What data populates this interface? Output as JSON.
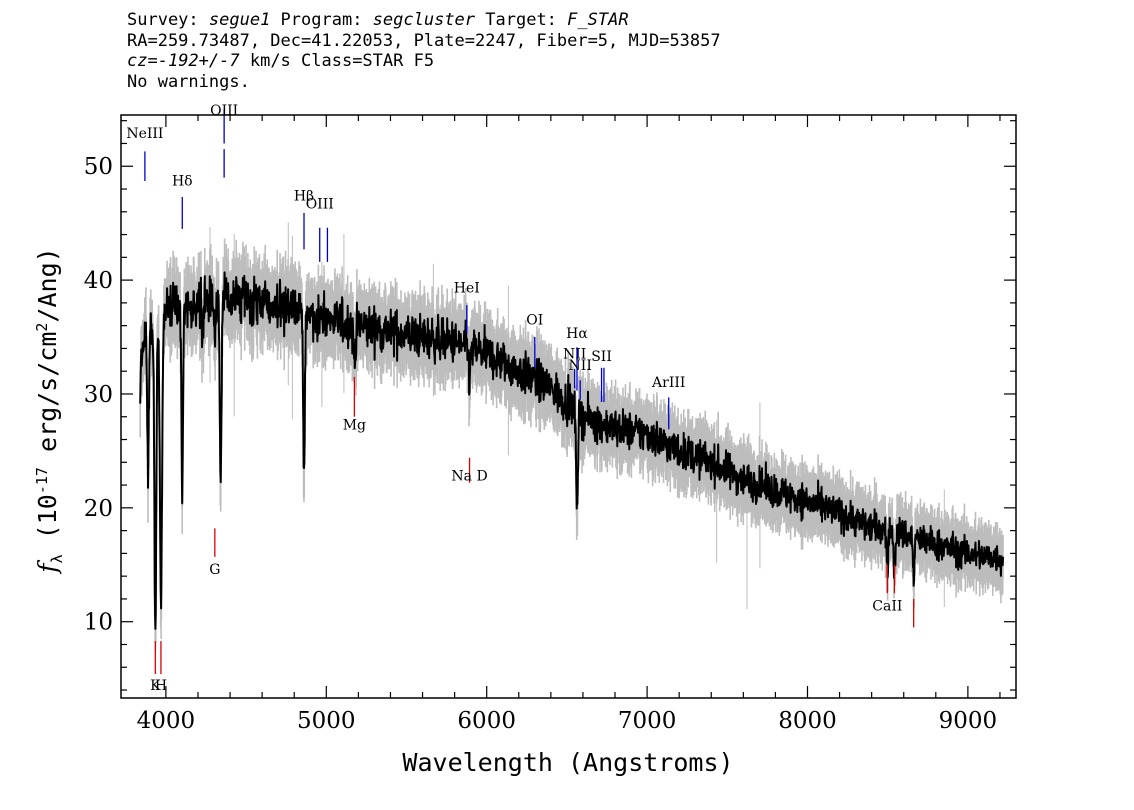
{
  "header": {
    "line1": {
      "survey_label": "Survey: ",
      "survey": "segue1",
      "program_label": " Program: ",
      "program": "segcluster",
      "target_label": " Target: ",
      "target": "F_STAR"
    },
    "line2": "RA=259.73487, Dec=41.22053, Plate=2247, Fiber=5, MJD=53857",
    "line3": {
      "cz_label": "cz=",
      "cz": "-192+/-7",
      "rest": " km/s Class=STAR F5"
    },
    "line4": "No warnings."
  },
  "colors": {
    "flux": "#000000",
    "error_band": "#bdbdbd",
    "emission": "#0000cc",
    "absorption": "#dd0000",
    "axes": "#000000"
  },
  "chart_data": {
    "type": "line",
    "xlabel": "Wavelength (Angstroms)",
    "ylabel": "f_λ (10^-17 erg/s/cm^2/Ang)",
    "ylabel_parts": {
      "f": "f",
      "sub": "λ",
      "pre": " (10",
      "exp1": "-17",
      "mid": " erg/s/cm",
      "exp2": "2",
      "post": "/Ang)"
    },
    "xlim": [
      3720,
      9300
    ],
    "ylim": [
      3.3,
      54.5
    ],
    "xticks": [
      4000,
      5000,
      6000,
      7000,
      8000,
      9000
    ],
    "yticks": [
      10,
      20,
      30,
      40,
      50
    ],
    "grid": false,
    "continuum": [
      [
        3840,
        33
      ],
      [
        3900,
        36
      ],
      [
        4000,
        37.5
      ],
      [
        4200,
        38
      ],
      [
        4400,
        38.3
      ],
      [
        4600,
        38
      ],
      [
        4800,
        37.5
      ],
      [
        5000,
        36.5
      ],
      [
        5200,
        36
      ],
      [
        5400,
        35.5
      ],
      [
        5600,
        35
      ],
      [
        5800,
        34.5
      ],
      [
        6000,
        33.5
      ],
      [
        6200,
        32
      ],
      [
        6400,
        30.5
      ],
      [
        6600,
        28
      ],
      [
        6800,
        27
      ],
      [
        7000,
        26.5
      ],
      [
        7200,
        25
      ],
      [
        7400,
        24
      ],
      [
        7600,
        22.5
      ],
      [
        7800,
        21.5
      ],
      [
        8000,
        20.5
      ],
      [
        8200,
        19.5
      ],
      [
        8400,
        18.3
      ],
      [
        8600,
        17.7
      ],
      [
        8800,
        16.8
      ],
      [
        9000,
        16
      ],
      [
        9220,
        15.5
      ]
    ],
    "absorption_features": [
      {
        "x": 3835,
        "depth": 10,
        "width": 4
      },
      {
        "x": 3889,
        "depth": 12,
        "width": 5
      },
      {
        "x": 3934,
        "depth": 28,
        "width": 6
      },
      {
        "x": 3969,
        "depth": 26,
        "width": 7
      },
      {
        "x": 4102,
        "depth": 16,
        "width": 5
      },
      {
        "x": 4227,
        "depth": 3,
        "width": 4
      },
      {
        "x": 4305,
        "depth": 3,
        "width": 5
      },
      {
        "x": 4341,
        "depth": 15,
        "width": 5
      },
      {
        "x": 4861,
        "depth": 14,
        "width": 5
      },
      {
        "x": 5175,
        "depth": 2.5,
        "width": 8
      },
      {
        "x": 5893,
        "depth": 2.5,
        "width": 6
      },
      {
        "x": 6563,
        "depth": 7.5,
        "width": 6
      },
      {
        "x": 8498,
        "depth": 3,
        "width": 5
      },
      {
        "x": 8542,
        "depth": 3.5,
        "width": 5
      },
      {
        "x": 8662,
        "depth": 3.5,
        "width": 5
      }
    ],
    "emission_lines": [
      {
        "label": "NeIII",
        "wavelength": 3869,
        "y1": 48.7,
        "y2": 51.3,
        "label_y": 52.5
      },
      {
        "label": "OIII",
        "wavelength": 4363,
        "y1": 52.0,
        "y2": 55.0,
        "label_y": 54.5
      },
      {
        "label": "OIII",
        "wavelength": 4363,
        "y1": 49.0,
        "y2": 51.5,
        "label_y": null
      },
      {
        "label": "Hδ",
        "wavelength": 4102,
        "y1": 44.5,
        "y2": 47.3,
        "label_y": 48.3
      },
      {
        "label": "Hβ",
        "wavelength": 4861,
        "y1": 42.7,
        "y2": 45.9,
        "label_y": 47.0
      },
      {
        "label": "OIII",
        "wavelength": 4959,
        "y1": 41.6,
        "y2": 44.6,
        "label_y": 46.3
      },
      {
        "label": "",
        "wavelength": 5007,
        "y1": 41.6,
        "y2": 44.6,
        "label_y": null
      },
      {
        "label": "HeI",
        "wavelength": 5876,
        "y1": 35.3,
        "y2": 37.8,
        "label_y": 38.9
      },
      {
        "label": "OI",
        "wavelength": 6300,
        "y1": 32.3,
        "y2": 35.0,
        "label_y": 36.1
      },
      {
        "label": "NII",
        "wavelength": 6548,
        "y1": 30.5,
        "y2": 32.2,
        "label_y": 33.1
      },
      {
        "label": "Hα",
        "wavelength": 6563,
        "y1": 30.3,
        "y2": 34.1,
        "label_y": 34.9
      },
      {
        "label": "NII",
        "wavelength": 6583,
        "y1": 29.5,
        "y2": 31.2,
        "label_y": 32.1
      },
      {
        "label": "SII",
        "wavelength": 6716,
        "y1": 29.3,
        "y2": 32.3,
        "label_y": 32.9
      },
      {
        "label": "",
        "wavelength": 6731,
        "y1": 29.3,
        "y2": 32.3,
        "label_y": null
      },
      {
        "label": "ArIII",
        "wavelength": 7135,
        "y1": 26.9,
        "y2": 29.7,
        "label_y": 30.6
      }
    ],
    "absorption_lines": [
      {
        "label": "K",
        "wavelength": 3934,
        "y1": 5.4,
        "y2": 8.3,
        "label_y": 4.0
      },
      {
        "label": "H",
        "wavelength": 3969,
        "y1": 5.4,
        "y2": 8.3,
        "label_y": 4.0
      },
      {
        "label": "G",
        "wavelength": 4305,
        "y1": 15.7,
        "y2": 18.2,
        "label_y": 14.2
      },
      {
        "label": "Mg",
        "wavelength": 5175,
        "y1": 28.0,
        "y2": 31.5,
        "label_y": 26.9
      },
      {
        "label": "Na D",
        "wavelength": 5893,
        "y1": 22.2,
        "y2": 24.4,
        "label_y": 22.4
      },
      {
        "label": "CaII",
        "wavelength": 8498,
        "y1": 12.5,
        "y2": 15.0,
        "label_y": 11.0
      },
      {
        "label": "",
        "wavelength": 8542,
        "y1": 12.5,
        "y2": 15.0,
        "label_y": null
      },
      {
        "label": "",
        "wavelength": 8662,
        "y1": 9.5,
        "y2": 12.0,
        "label_y": null
      }
    ]
  }
}
